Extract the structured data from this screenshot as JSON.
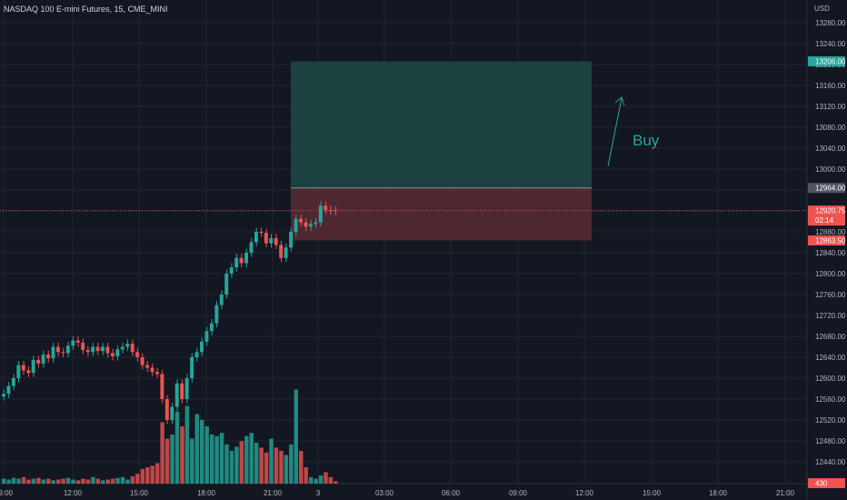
{
  "header": {
    "title": "NASDAQ 100 E-mini Futures, 15, CME_MINI",
    "currency": "USD"
  },
  "annotation": {
    "buy_label": "Buy"
  },
  "colors": {
    "bg": "#131722",
    "grid": "#1f2430",
    "up": "#26a69a",
    "down": "#ef5350",
    "profit_zone": "#1f4a44",
    "loss_zone": "#5a2a33",
    "text": "#b2b5be"
  },
  "chart_data": {
    "type": "candlestick",
    "title": "NASDAQ 100 E-mini Futures, 15, CME_MINI",
    "ylim": [
      12400,
      13300
    ],
    "y_ticks": [
      "13280.00",
      "13240.00",
      "13200.00",
      "13160.00",
      "13120.00",
      "13080.00",
      "13040.00",
      "13000.00",
      "12960.00",
      "12920.00",
      "12880.00",
      "12840.00",
      "12800.00",
      "12760.00",
      "12720.00",
      "12680.00",
      "12640.00",
      "12600.00",
      "12560.00",
      "12520.00",
      "12480.00",
      "12440.00"
    ],
    "x_ticks": [
      "09:00",
      "12:00",
      "15:00",
      "18:00",
      "21:00",
      "3",
      "03:00",
      "06:00",
      "09:00",
      "12:00",
      "15:00",
      "18:00",
      "21:00"
    ],
    "price_tags": [
      {
        "label": "13206.00",
        "value": 13206,
        "color": "#26a69a"
      },
      {
        "label": "12964.00",
        "value": 12964,
        "color": "#4f5566"
      },
      {
        "label": "12920.75",
        "sub": "02:14",
        "value": 12920.75,
        "color": "#ef5350"
      },
      {
        "label": "12863.50",
        "value": 12863.5,
        "color": "#ef5350"
      },
      {
        "label": "430",
        "value": 12400,
        "color": "#ef5350"
      }
    ],
    "position": {
      "side": "long",
      "entry": 12964.0,
      "target": 13206.0,
      "stop": 12863.5
    },
    "current_price": 12920.75,
    "candles_close": [
      12570,
      12585,
      12600,
      12625,
      12615,
      12610,
      12635,
      12628,
      12645,
      12638,
      12660,
      12650,
      12648,
      12662,
      12672,
      12668,
      12654,
      12650,
      12660,
      12652,
      12660,
      12648,
      12642,
      12655,
      12660,
      12666,
      12650,
      12640,
      12625,
      12620,
      12612,
      12608,
      12560,
      12520,
      12545,
      12590,
      12560,
      12600,
      12640,
      12650,
      12670,
      12690,
      12705,
      12740,
      12760,
      12800,
      12812,
      12830,
      12820,
      12840,
      12860,
      12880,
      12878,
      12858,
      12868,
      12855,
      12830,
      12850,
      12880,
      12905,
      12898,
      12890,
      12895,
      12898,
      12930,
      12922,
      12921,
      12920
    ],
    "volume_note": "volume bars shown at bottom; last volume 430"
  }
}
